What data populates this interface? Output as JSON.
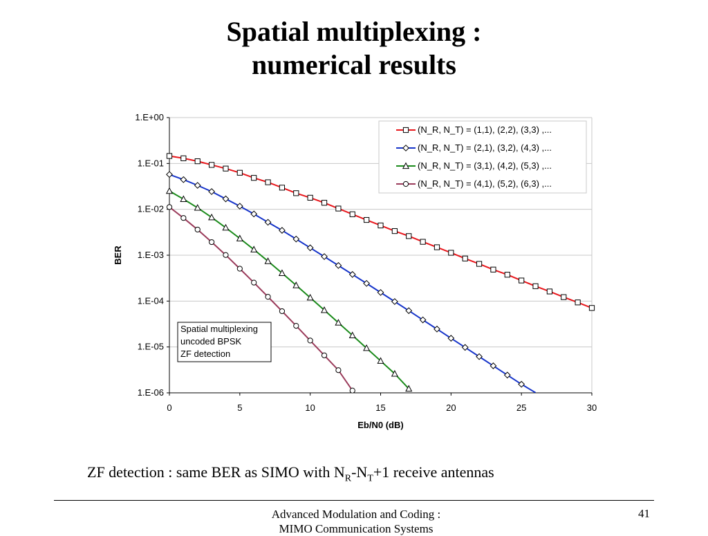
{
  "slide": {
    "title_line1": "Spatial multiplexing :",
    "title_line2": "numerical results",
    "caption": {
      "prefix": "ZF detection : same BER as SIMO with N",
      "sub1": "R",
      "mid": "-N",
      "sub2": "T",
      "suffix": "+1 receive antennas"
    },
    "footer_line1": "Advanced Modulation and Coding :",
    "footer_line2": "MIMO Communication Systems",
    "page_number": "41"
  },
  "chart_data": {
    "type": "line",
    "xlabel": "Eb/N0 (dB)",
    "ylabel": "BER",
    "xlim": [
      0,
      30
    ],
    "ylim": [
      1e-06,
      1
    ],
    "y_scale": "log",
    "x_ticks": [
      "0",
      "5",
      "10",
      "15",
      "20",
      "25",
      "30"
    ],
    "y_ticks": [
      "1.E+00",
      "1.E-01",
      "1.E-02",
      "1.E-03",
      "1.E-04",
      "1.E-05",
      "1.E-06"
    ],
    "grid": "horizontal",
    "legend_position": "top-right",
    "annotation": [
      "Spatial multiplexing",
      "uncoded BPSK",
      "ZF detection"
    ],
    "x": [
      0,
      1,
      2,
      3,
      4,
      5,
      6,
      7,
      8,
      9,
      10,
      11,
      12,
      13,
      14,
      15,
      16,
      17,
      18,
      19,
      20,
      21,
      22,
      23,
      24,
      25,
      26,
      27,
      28,
      29,
      30
    ],
    "series": [
      {
        "name": "(N_R, N_T) = (1,1), (2,2), (3,3) ,...",
        "color": "#e8161b",
        "marker": "square",
        "values": [
          0.1455,
          0.1294,
          0.1118,
          0.0929,
          0.0774,
          0.0627,
          0.0485,
          0.0389,
          0.0297,
          0.0225,
          0.0179,
          0.0139,
          0.0104,
          0.00781,
          0.00587,
          0.00445,
          0.00336,
          0.00261,
          0.00196,
          0.00149,
          0.00113,
          0.000847,
          0.000647,
          0.000486,
          0.000376,
          0.000281,
          0.000211,
          0.000162,
          0.000122,
          9.35e-05,
          7.08e-05
        ]
      },
      {
        "name": "(N_R, N_T) = (2,1), (3,2), (4,3) ,...",
        "color": "#1533c9",
        "marker": "diamond",
        "values": [
          0.0575,
          0.0444,
          0.0333,
          0.0244,
          0.0169,
          0.0117,
          0.00793,
          0.00522,
          0.00348,
          0.00225,
          0.00145,
          0.000933,
          0.000597,
          0.000381,
          0.000243,
          0.000154,
          9.77e-05,
          6.18e-05,
          3.89e-05,
          2.46e-05,
          1.55e-05,
          9.78e-06,
          6.16e-06,
          3.88e-06,
          2.44e-06,
          1.54e-06,
          1.01e-06,
          null,
          null,
          null,
          null
        ]
      },
      {
        "name": "(N_R, N_T) = (3,1), (4,2), (5,3) ,...",
        "color": "#1a8a1a",
        "marker": "triangle",
        "values": [
          0.0251,
          0.0167,
          0.0108,
          0.00668,
          0.00398,
          0.00232,
          0.00133,
          0.000741,
          0.000407,
          0.000221,
          0.000119,
          6.36e-05,
          3.38e-05,
          1.79e-05,
          9.44e-06,
          4.97e-06,
          2.61e-06,
          1.23e-06,
          null,
          null,
          null,
          null,
          null,
          null,
          null,
          null,
          null,
          null,
          null,
          null,
          null
        ]
      },
      {
        "name": "(N_R, N_T) = (4,1), (5,2), (6,3) ,...",
        "color": "#9a3a5a",
        "marker": "circle",
        "values": [
          0.0112,
          0.00647,
          0.00362,
          0.00193,
          0.00101,
          0.000508,
          0.000253,
          0.000124,
          6.02e-05,
          2.89e-05,
          1.38e-05,
          6.56e-06,
          3.12e-06,
          1.12e-06,
          null,
          null,
          null,
          null,
          null,
          null,
          null,
          null,
          null,
          null,
          null,
          null,
          null,
          null,
          null,
          null,
          null
        ]
      }
    ]
  }
}
